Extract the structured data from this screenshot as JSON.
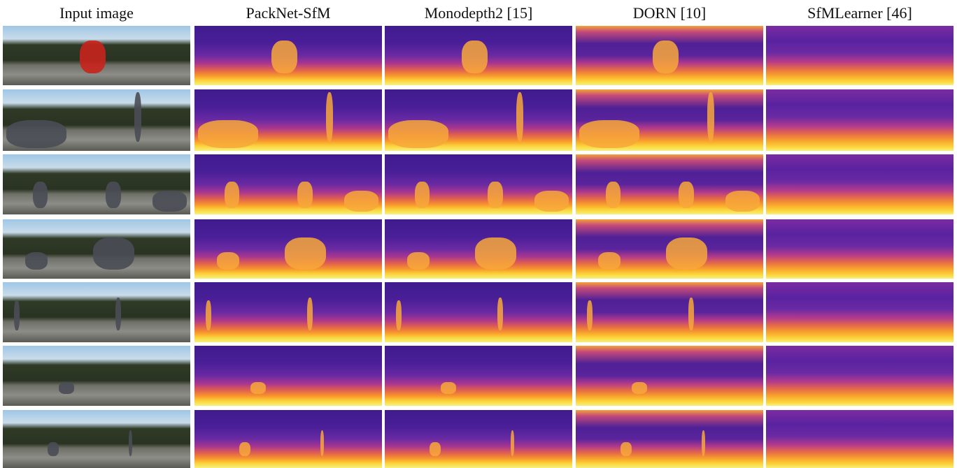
{
  "columns": [
    "Input image",
    "PackNet-SfM",
    "Monodepth2 [15]",
    "DORN [10]",
    "SfMLearner [46]"
  ]
}
